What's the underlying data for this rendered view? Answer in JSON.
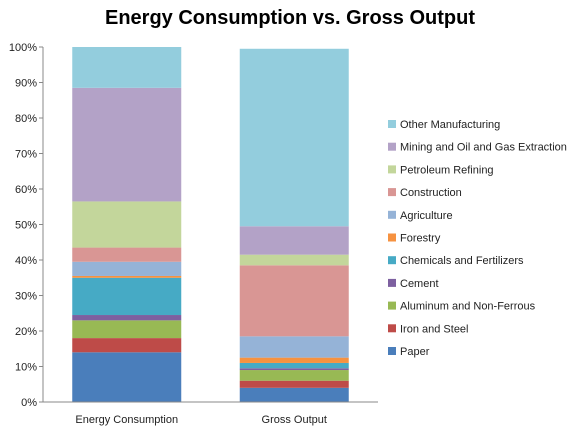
{
  "chart_data": {
    "type": "bar",
    "stacked": true,
    "title": "Energy Consumption vs. Gross Output",
    "xlabel": "",
    "ylabel": "",
    "ylim": [
      0,
      100
    ],
    "y_tick_labels": [
      "0%",
      "10%",
      "20%",
      "30%",
      "40%",
      "50%",
      "60%",
      "70%",
      "80%",
      "90%",
      "100%"
    ],
    "categories": [
      "Energy Consumption",
      "Gross Output"
    ],
    "legend_position": "right",
    "grid": false,
    "series": [
      {
        "name": "Paper",
        "color": "#4a7ebb",
        "values": [
          14,
          4
        ]
      },
      {
        "name": "Iron and Steel",
        "color": "#be4b48",
        "values": [
          4,
          2
        ]
      },
      {
        "name": "Aluminum and Non-Ferrous",
        "color": "#98b954",
        "values": [
          5,
          3
        ]
      },
      {
        "name": "Cement",
        "color": "#7d60a0",
        "values": [
          1.5,
          0.5
        ]
      },
      {
        "name": "Chemicals and Fertilizers",
        "color": "#46aac5",
        "values": [
          10.5,
          1.5
        ]
      },
      {
        "name": "Forestry",
        "color": "#f69240",
        "values": [
          0.5,
          1.5
        ]
      },
      {
        "name": "Agriculture",
        "color": "#95b3d7",
        "values": [
          4,
          6
        ]
      },
      {
        "name": "Construction",
        "color": "#d99694",
        "values": [
          4,
          20
        ]
      },
      {
        "name": "Petroleum Refining",
        "color": "#c3d69b",
        "values": [
          13,
          3
        ]
      },
      {
        "name": "Mining and Oil and Gas Extraction",
        "color": "#b3a2c7",
        "values": [
          32,
          8
        ]
      },
      {
        "name": "Other Manufacturing",
        "color": "#93cddd",
        "values": [
          11.5,
          50
        ]
      }
    ]
  }
}
